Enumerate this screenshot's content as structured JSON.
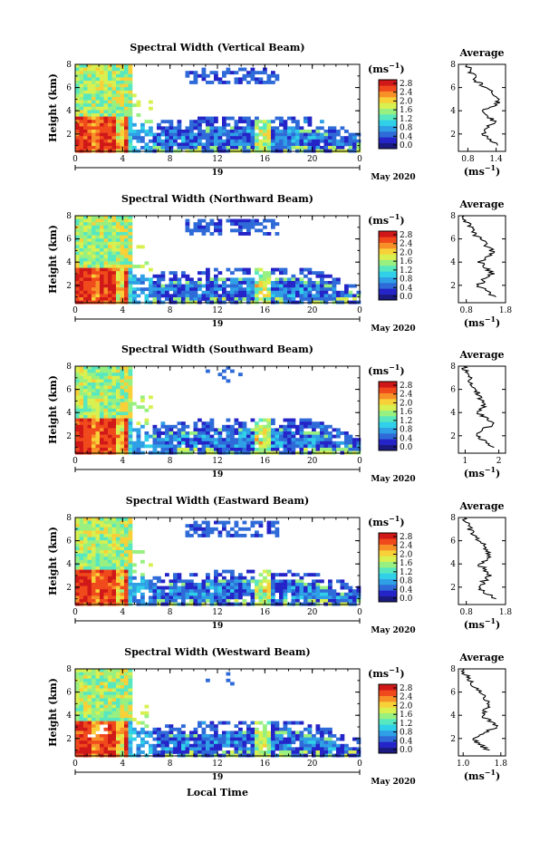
{
  "figure": {
    "xlabel": "Local Time",
    "date_label": "May 2020",
    "day_label": "19",
    "x_ticks": [
      "0",
      "4",
      "8",
      "12",
      "16",
      "20",
      "0"
    ],
    "y_ticks": [
      "2",
      "4",
      "6",
      "8"
    ],
    "y_label": "Height (km)",
    "colorbar_unit": "(ms",
    "colorbar_unit_exp": "−1",
    "colorbar_unit_close": ")",
    "avg_title": "Average",
    "avg_xunit": "(ms",
    "avg_xunit_exp": "−1",
    "avg_xunit_close": ")",
    "colormap": [
      "#1a1a80",
      "#2424c8",
      "#2f6bd8",
      "#2fa0e6",
      "#30d0e8",
      "#58e8c0",
      "#98f080",
      "#d8f050",
      "#f8d038",
      "#f89028",
      "#f04a1c",
      "#d01818"
    ]
  },
  "chart_data": [
    {
      "type": "heatmap",
      "title": "Spectral Width (Vertical Beam)",
      "xlabel": "Local Time",
      "ylabel": "Height (km)",
      "x_range": [
        0,
        24
      ],
      "y_range": [
        0.5,
        8
      ],
      "colorbar_ticks": [
        "2.8",
        "2.4",
        "2.0",
        "1.6",
        "1.2",
        "0.8",
        "0.4",
        "0.0"
      ],
      "colorbar_range": [
        0,
        2.8
      ],
      "avg_profile": {
        "title": "Average",
        "xlim": [
          0.6,
          1.6
        ],
        "x_ticks": [
          "0.8",
          "1.4"
        ],
        "y": [
          1.0,
          1.5,
          2.0,
          2.5,
          3.0,
          3.5,
          4.0,
          4.5,
          5.0,
          5.5,
          6.0,
          6.5,
          7.0,
          7.5,
          8.0
        ],
        "x": [
          1.42,
          1.28,
          1.12,
          1.18,
          1.38,
          1.22,
          1.05,
          1.4,
          1.48,
          1.32,
          1.18,
          1.0,
          0.92,
          0.82,
          0.78
        ]
      }
    },
    {
      "type": "heatmap",
      "title": "Spectral Width (Northward Beam)",
      "xlabel": "Local Time",
      "ylabel": "Height (km)",
      "x_range": [
        0,
        24
      ],
      "y_range": [
        0.5,
        8
      ],
      "colorbar_ticks": [
        "2.8",
        "2.4",
        "2.0",
        "1.6",
        "1.2",
        "0.8",
        "0.4",
        "0.0"
      ],
      "colorbar_range": [
        0,
        2.8
      ],
      "avg_profile": {
        "title": "Average",
        "xlim": [
          0.6,
          1.8
        ],
        "x_ticks": [
          "0.8",
          "1.8"
        ],
        "y": [
          1.0,
          1.5,
          2.0,
          2.5,
          3.0,
          3.5,
          4.0,
          4.5,
          5.0,
          5.5,
          6.0,
          6.5,
          7.0,
          7.5,
          8.0
        ],
        "x": [
          1.55,
          1.3,
          1.12,
          1.25,
          1.45,
          1.3,
          1.15,
          1.4,
          1.45,
          1.3,
          1.15,
          1.0,
          0.9,
          0.8,
          0.75
        ]
      }
    },
    {
      "type": "heatmap",
      "title": "Spectral Width (Southward Beam)",
      "xlabel": "Local Time",
      "ylabel": "Height (km)",
      "x_range": [
        0,
        24
      ],
      "y_range": [
        0.5,
        8
      ],
      "colorbar_ticks": [
        "2.8",
        "2.4",
        "2.0",
        "1.6",
        "1.2",
        "0.8",
        "0.4",
        "0.0"
      ],
      "colorbar_range": [
        0,
        2.8
      ],
      "avg_profile": {
        "title": "Average",
        "xlim": [
          0.8,
          2.2
        ],
        "x_ticks": [
          "1",
          "2"
        ],
        "y": [
          1.0,
          1.5,
          2.0,
          2.5,
          3.0,
          3.5,
          4.0,
          4.5,
          5.0,
          5.5,
          6.0,
          6.5,
          7.0,
          7.5,
          8.0
        ],
        "x": [
          1.85,
          1.55,
          1.35,
          1.5,
          1.85,
          1.6,
          1.4,
          1.55,
          1.5,
          1.4,
          1.3,
          1.2,
          1.1,
          1.0,
          0.95
        ]
      }
    },
    {
      "type": "heatmap",
      "title": "Spectral Width (Eastward Beam)",
      "xlabel": "Local Time",
      "ylabel": "Height (km)",
      "x_range": [
        0,
        24
      ],
      "y_range": [
        0.5,
        8
      ],
      "colorbar_ticks": [
        "2.8",
        "2.4",
        "2.0",
        "1.6",
        "1.2",
        "0.8",
        "0.4",
        "0.0"
      ],
      "colorbar_range": [
        0,
        2.8
      ],
      "avg_profile": {
        "title": "Average",
        "xlim": [
          0.6,
          1.8
        ],
        "x_ticks": [
          "0.8",
          "1.8"
        ],
        "y": [
          1.0,
          1.5,
          2.0,
          2.5,
          3.0,
          3.5,
          4.0,
          4.5,
          5.0,
          5.5,
          6.0,
          6.5,
          7.0,
          7.5,
          8.0
        ],
        "x": [
          1.55,
          1.3,
          1.12,
          1.25,
          1.4,
          1.28,
          1.12,
          1.35,
          1.4,
          1.28,
          1.12,
          1.0,
          0.9,
          0.8,
          0.75
        ]
      }
    },
    {
      "type": "heatmap",
      "title": "Spectral Width (Westward Beam)",
      "xlabel": "Local Time",
      "ylabel": "Height (km)",
      "x_range": [
        0,
        24
      ],
      "y_range": [
        0.5,
        8
      ],
      "colorbar_ticks": [
        "2.8",
        "2.4",
        "2.0",
        "1.6",
        "1.2",
        "0.8",
        "0.4",
        "0.0"
      ],
      "colorbar_range": [
        0,
        2.8
      ],
      "avg_profile": {
        "title": "Average",
        "xlim": [
          0.9,
          1.9
        ],
        "x_ticks": [
          "1.0",
          "1.8"
        ],
        "y": [
          1.0,
          1.5,
          2.0,
          2.5,
          3.0,
          3.5,
          4.0,
          4.5,
          5.0,
          5.5,
          6.0,
          6.5,
          7.0,
          7.5,
          8.0
        ],
        "x": [
          1.55,
          1.35,
          1.2,
          1.45,
          1.75,
          1.55,
          1.4,
          1.5,
          1.55,
          1.45,
          1.35,
          1.25,
          1.15,
          1.05,
          1.0
        ]
      }
    }
  ]
}
